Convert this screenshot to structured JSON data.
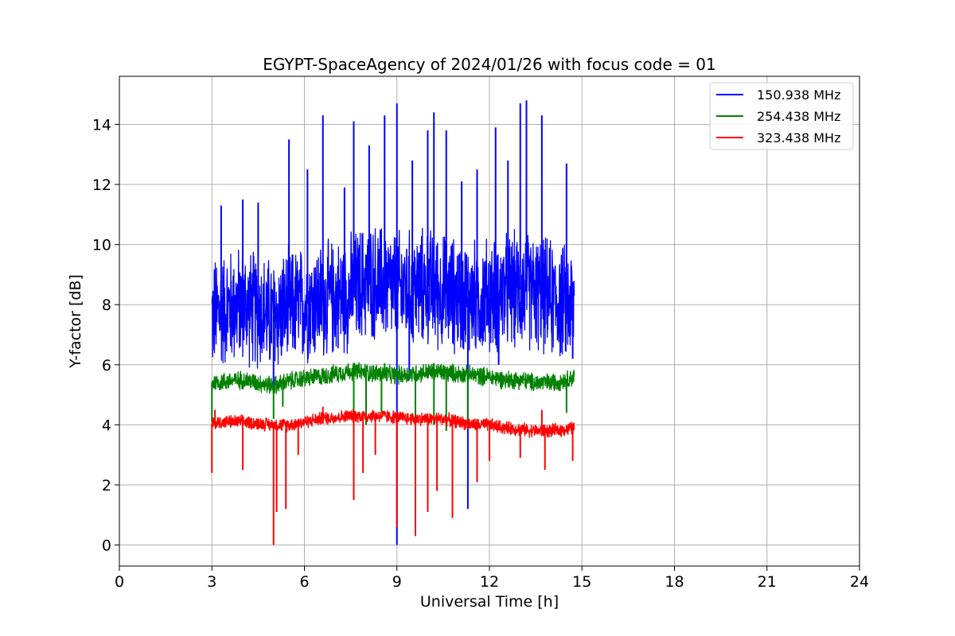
{
  "chart_data": {
    "type": "line",
    "title": "EGYPT-SpaceAgency of 2024/01/26 with focus code = 01",
    "xlabel": "Universal Time [h]",
    "ylabel": "Y-factor [dB]",
    "xlim": [
      0,
      24
    ],
    "ylim": [
      -0.7,
      15.6
    ],
    "xticks": [
      0,
      3,
      6,
      9,
      12,
      15,
      18,
      21,
      24
    ],
    "yticks": [
      0,
      2,
      4,
      6,
      8,
      10,
      12,
      14
    ],
    "grid": true,
    "legend_position": "top-right",
    "series": [
      {
        "name": "150.938 MHz",
        "color": "#0000ff",
        "x": [
          3.0,
          3.5,
          4.0,
          4.5,
          5.0,
          5.5,
          6.0,
          6.5,
          7.0,
          7.5,
          8.0,
          8.5,
          9.0,
          9.5,
          10.0,
          10.5,
          11.0,
          11.5,
          12.0,
          12.5,
          13.0,
          13.5,
          14.0,
          14.5,
          14.75
        ],
        "y": [
          7.6,
          7.9,
          8.0,
          7.8,
          7.6,
          7.9,
          8.0,
          8.1,
          8.2,
          8.4,
          8.8,
          8.7,
          8.5,
          8.5,
          8.6,
          8.4,
          8.3,
          8.2,
          8.3,
          8.4,
          8.5,
          8.4,
          8.2,
          8.0,
          8.0
        ],
        "spikes_up": [
          [
            3.3,
            11.3
          ],
          [
            4.0,
            11.5
          ],
          [
            4.5,
            11.4
          ],
          [
            5.5,
            13.5
          ],
          [
            6.1,
            12.5
          ],
          [
            6.6,
            14.3
          ],
          [
            7.3,
            11.9
          ],
          [
            7.6,
            14.1
          ],
          [
            8.1,
            13.3
          ],
          [
            8.6,
            14.3
          ],
          [
            9.0,
            14.7
          ],
          [
            9.5,
            12.8
          ],
          [
            10.0,
            13.8
          ],
          [
            10.2,
            14.4
          ],
          [
            10.6,
            13.8
          ],
          [
            11.1,
            12.1
          ],
          [
            11.6,
            12.5
          ],
          [
            12.2,
            13.9
          ],
          [
            12.6,
            12.8
          ],
          [
            13.0,
            14.7
          ],
          [
            13.2,
            14.8
          ],
          [
            13.7,
            14.3
          ],
          [
            14.5,
            12.7
          ]
        ],
        "spikes_down": [
          [
            5.0,
            5.3
          ],
          [
            9.0,
            0.0
          ],
          [
            9.4,
            5.5
          ],
          [
            11.3,
            1.2
          ],
          [
            12.3,
            6.0
          ],
          [
            14.7,
            6.2
          ]
        ]
      },
      {
        "name": "254.438 MHz",
        "color": "#008000",
        "x": [
          3.0,
          3.5,
          4.0,
          4.5,
          5.0,
          5.5,
          6.0,
          6.5,
          7.0,
          7.5,
          8.0,
          8.5,
          9.0,
          9.5,
          10.0,
          10.5,
          11.0,
          11.5,
          12.0,
          12.5,
          13.0,
          13.5,
          14.0,
          14.5,
          14.75
        ],
        "y": [
          5.4,
          5.45,
          5.5,
          5.4,
          5.3,
          5.45,
          5.55,
          5.6,
          5.7,
          5.8,
          5.75,
          5.7,
          5.65,
          5.7,
          5.75,
          5.75,
          5.7,
          5.65,
          5.6,
          5.5,
          5.5,
          5.4,
          5.4,
          5.5,
          5.6
        ],
        "spikes_up": [
          [
            7.6,
            6.0
          ],
          [
            8.6,
            6.05
          ],
          [
            10.2,
            6.05
          ]
        ],
        "spikes_down": [
          [
            3.0,
            4.1
          ],
          [
            5.0,
            4.2
          ],
          [
            5.3,
            4.6
          ],
          [
            7.6,
            3.9
          ],
          [
            8.0,
            4.0
          ],
          [
            8.5,
            4.4
          ],
          [
            9.6,
            4.2
          ],
          [
            10.2,
            4.0
          ],
          [
            10.6,
            3.8
          ],
          [
            11.3,
            3.9
          ],
          [
            14.5,
            4.4
          ]
        ]
      },
      {
        "name": "323.438 MHz",
        "color": "#ff0000",
        "x": [
          3.0,
          3.5,
          4.0,
          4.5,
          5.0,
          5.5,
          6.0,
          6.5,
          7.0,
          7.5,
          8.0,
          8.5,
          9.0,
          9.5,
          10.0,
          10.5,
          11.0,
          11.5,
          12.0,
          12.5,
          13.0,
          13.5,
          14.0,
          14.5,
          14.75
        ],
        "y": [
          4.05,
          4.1,
          4.1,
          4.05,
          4.0,
          4.0,
          4.1,
          4.2,
          4.25,
          4.3,
          4.3,
          4.3,
          4.25,
          4.2,
          4.2,
          4.2,
          4.1,
          4.0,
          4.0,
          3.9,
          3.85,
          3.8,
          3.8,
          3.85,
          3.9
        ],
        "spikes_up": [
          [
            3.1,
            4.5
          ],
          [
            6.6,
            4.6
          ],
          [
            13.7,
            4.5
          ]
        ],
        "spikes_down": [
          [
            3.0,
            2.4
          ],
          [
            4.0,
            2.5
          ],
          [
            5.0,
            0.0
          ],
          [
            5.1,
            1.1
          ],
          [
            5.4,
            1.2
          ],
          [
            5.8,
            3.0
          ],
          [
            7.6,
            1.5
          ],
          [
            7.9,
            2.4
          ],
          [
            8.3,
            3.0
          ],
          [
            9.0,
            0.6
          ],
          [
            9.6,
            0.3
          ],
          [
            10.0,
            1.1
          ],
          [
            10.3,
            1.8
          ],
          [
            10.8,
            0.9
          ],
          [
            11.6,
            2.1
          ],
          [
            12.0,
            2.8
          ],
          [
            13.0,
            2.9
          ],
          [
            13.8,
            2.5
          ],
          [
            14.7,
            2.8
          ]
        ]
      }
    ]
  }
}
